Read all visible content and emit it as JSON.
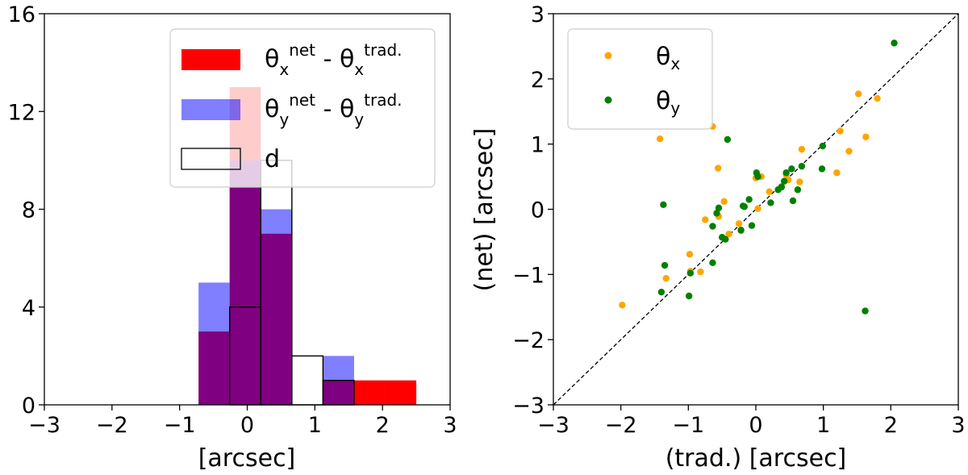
{
  "chart_data": [
    {
      "type": "histogram",
      "xlabel": "[arcsec]",
      "ylabel": "",
      "xlim": [
        -3,
        3
      ],
      "ylim": [
        0,
        16
      ],
      "xticks": [
        "−3",
        "−2",
        "−1",
        "0",
        "1",
        "2",
        "3"
      ],
      "yticks": [
        "0",
        "4",
        "8",
        "12",
        "16"
      ],
      "bin_edges": [
        -0.72,
        -0.26,
        0.2,
        0.66,
        1.12,
        1.58,
        2.04,
        2.5
      ],
      "series": [
        {
          "name_main": "θ",
          "name_sub": "x",
          "name_sup": "net",
          "sep": " - ",
          "name2_main": "θ",
          "name2_sub": "x",
          "name2_sup": "trad.",
          "style": "filled",
          "color": "#ff0000",
          "opacity": 1.0,
          "counts": [
            3,
            13,
            7,
            0,
            1,
            1,
            1
          ]
        },
        {
          "name_main": "θ",
          "name_sub": "y",
          "name_sup": "net",
          "sep": " - ",
          "name2_main": "θ",
          "name2_sub": "y",
          "name2_sup": "trad.",
          "style": "filled",
          "color": "#0000ff",
          "opacity": 0.5,
          "counts": [
            5,
            10,
            8,
            0,
            2,
            0,
            0
          ]
        },
        {
          "name_main": "d",
          "style": "step",
          "color": "#000000",
          "counts": [
            0,
            4,
            10,
            2,
            1,
            0,
            0
          ],
          "step_extra_bin": {
            "x0": -0.72,
            "x1": -0.26,
            "count": 0
          }
        }
      ],
      "legend_position": "top-right"
    },
    {
      "type": "scatter",
      "xlabel": "(trad.) [arcsec]",
      "ylabel": "(net) [arcsec]",
      "xlim": [
        -3,
        3
      ],
      "ylim": [
        -3,
        3
      ],
      "xticks": [
        "−3",
        "−2",
        "−1",
        "0",
        "1",
        "2",
        "3"
      ],
      "yticks": [
        "−3",
        "−2",
        "−1",
        "0",
        "1",
        "2",
        "3"
      ],
      "reference_line": "y = x (dashed)",
      "legend_position": "top-left",
      "series": [
        {
          "name_main": "θ",
          "name_sub": "x",
          "color": "#ffa500",
          "x": [
            -1.98,
            -1.42,
            -1.33,
            -0.98,
            -0.97,
            -0.82,
            -0.75,
            -0.64,
            -0.56,
            -0.55,
            -0.47,
            -0.4,
            -0.25,
            -0.22,
            0.0,
            0.03,
            0.08,
            0.2,
            0.38,
            0.45,
            0.48,
            0.65,
            0.68,
            1.2,
            1.25,
            1.38,
            1.52,
            1.63,
            1.8
          ],
          "y": [
            -1.47,
            1.08,
            -1.06,
            -0.69,
            -0.95,
            -0.96,
            -0.16,
            1.27,
            0.63,
            -0.11,
            0.12,
            -0.38,
            -0.22,
            -0.33,
            0.48,
            0.01,
            0.5,
            0.27,
            0.35,
            0.53,
            0.45,
            0.42,
            0.92,
            0.56,
            1.2,
            0.89,
            1.77,
            1.11,
            1.7
          ]
        },
        {
          "name_main": "θ",
          "name_sub": "y",
          "color": "#008000",
          "x": [
            -1.4,
            -1.37,
            -1.35,
            -0.99,
            -0.97,
            -0.64,
            -0.64,
            -0.58,
            -0.55,
            -0.5,
            -0.45,
            -0.42,
            -0.22,
            -0.19,
            -0.17,
            -0.1,
            -0.06,
            0.01,
            0.03,
            0.22,
            0.33,
            0.38,
            0.42,
            0.45,
            0.53,
            0.55,
            0.62,
            0.68,
            0.98,
            0.99,
            1.62,
            2.05
          ],
          "y": [
            -1.27,
            0.07,
            -0.86,
            -1.33,
            -0.98,
            -0.26,
            -0.82,
            -0.06,
            0.02,
            -0.43,
            -0.46,
            1.07,
            -0.32,
            0.05,
            0.04,
            0.15,
            -0.25,
            0.56,
            0.5,
            0.1,
            0.3,
            0.34,
            0.43,
            0.56,
            0.62,
            0.13,
            0.3,
            0.66,
            0.62,
            0.97,
            -1.56,
            2.55
          ]
        }
      ]
    }
  ]
}
